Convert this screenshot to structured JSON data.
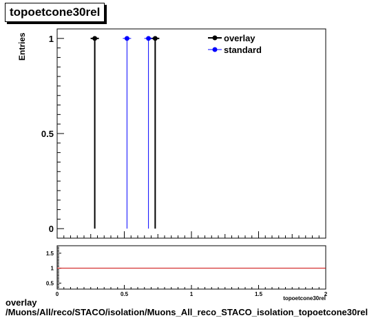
{
  "title": "topoetcone30rel",
  "caption": {
    "line1": "overlay",
    "line2": "/Muons/All/reco/STACO/isolation/Muons_All_reco_STACO_isolation_topoetcone30rel"
  },
  "colors": {
    "overlay": "#000000",
    "standard": "#0000ff",
    "ratio_line": "#cc0000"
  },
  "chart_data": [
    {
      "type": "scatter",
      "title": "topoetcone30rel",
      "ylabel": "Entries",
      "xlabel": "topoetcone30rel",
      "xlim": [
        0,
        2
      ],
      "ylim": [
        -0.05,
        1.05
      ],
      "yticks": [
        0,
        0.5,
        1
      ],
      "ytick_labels": [
        "0",
        "0.5",
        "1"
      ],
      "legend": {
        "position": "top-right",
        "entries": [
          "overlay",
          "standard"
        ]
      },
      "series": [
        {
          "name": "overlay",
          "color": "#000000",
          "x": [
            0.28,
            0.73
          ],
          "y": [
            1,
            1
          ]
        },
        {
          "name": "standard",
          "color": "#0000ff",
          "x": [
            0.52,
            0.68
          ],
          "y": [
            1,
            1
          ]
        }
      ]
    },
    {
      "type": "line",
      "xlim": [
        0,
        2
      ],
      "ylim": [
        0.3,
        1.75
      ],
      "xticks": [
        0,
        0.5,
        1,
        1.5,
        2
      ],
      "xtick_labels": [
        "0",
        "0.5",
        "1",
        "1.5",
        "2"
      ],
      "yticks": [
        0.5,
        1,
        1.5
      ],
      "ytick_labels": [
        "0.5",
        "1",
        "1.5"
      ],
      "reference_line": 1,
      "xlabel": "topoetcone30rel"
    }
  ]
}
